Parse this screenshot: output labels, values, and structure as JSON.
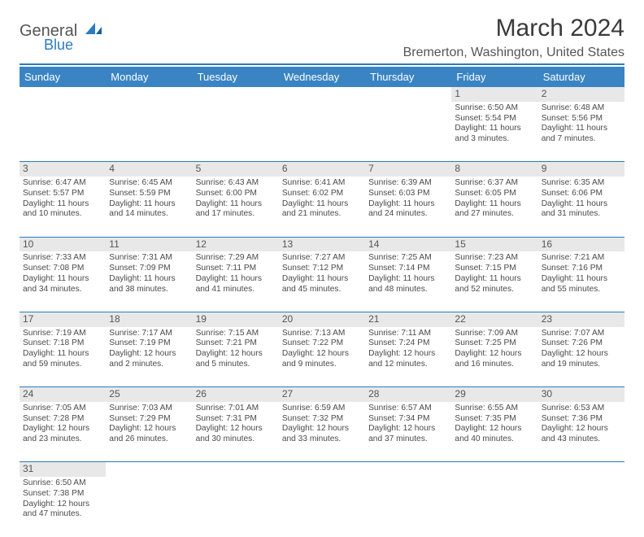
{
  "logo": {
    "text1": "General",
    "text2": "Blue"
  },
  "title": "March 2024",
  "location": "Bremerton, Washington, United States",
  "colors": {
    "header_bg": "#3a84c4",
    "rule": "#2b7bbf",
    "daynum_bg": "#e8e8e8",
    "text": "#4a4a4a"
  },
  "weekdays": [
    "Sunday",
    "Monday",
    "Tuesday",
    "Wednesday",
    "Thursday",
    "Friday",
    "Saturday"
  ],
  "weeks": [
    [
      null,
      null,
      null,
      null,
      null,
      {
        "n": "1",
        "sr": "6:50 AM",
        "ss": "5:54 PM",
        "dh": "11",
        "dm": "3"
      },
      {
        "n": "2",
        "sr": "6:48 AM",
        "ss": "5:56 PM",
        "dh": "11",
        "dm": "7"
      }
    ],
    [
      {
        "n": "3",
        "sr": "6:47 AM",
        "ss": "5:57 PM",
        "dh": "11",
        "dm": "10"
      },
      {
        "n": "4",
        "sr": "6:45 AM",
        "ss": "5:59 PM",
        "dh": "11",
        "dm": "14"
      },
      {
        "n": "5",
        "sr": "6:43 AM",
        "ss": "6:00 PM",
        "dh": "11",
        "dm": "17"
      },
      {
        "n": "6",
        "sr": "6:41 AM",
        "ss": "6:02 PM",
        "dh": "11",
        "dm": "21"
      },
      {
        "n": "7",
        "sr": "6:39 AM",
        "ss": "6:03 PM",
        "dh": "11",
        "dm": "24"
      },
      {
        "n": "8",
        "sr": "6:37 AM",
        "ss": "6:05 PM",
        "dh": "11",
        "dm": "27"
      },
      {
        "n": "9",
        "sr": "6:35 AM",
        "ss": "6:06 PM",
        "dh": "11",
        "dm": "31"
      }
    ],
    [
      {
        "n": "10",
        "sr": "7:33 AM",
        "ss": "7:08 PM",
        "dh": "11",
        "dm": "34"
      },
      {
        "n": "11",
        "sr": "7:31 AM",
        "ss": "7:09 PM",
        "dh": "11",
        "dm": "38"
      },
      {
        "n": "12",
        "sr": "7:29 AM",
        "ss": "7:11 PM",
        "dh": "11",
        "dm": "41"
      },
      {
        "n": "13",
        "sr": "7:27 AM",
        "ss": "7:12 PM",
        "dh": "11",
        "dm": "45"
      },
      {
        "n": "14",
        "sr": "7:25 AM",
        "ss": "7:14 PM",
        "dh": "11",
        "dm": "48"
      },
      {
        "n": "15",
        "sr": "7:23 AM",
        "ss": "7:15 PM",
        "dh": "11",
        "dm": "52"
      },
      {
        "n": "16",
        "sr": "7:21 AM",
        "ss": "7:16 PM",
        "dh": "11",
        "dm": "55"
      }
    ],
    [
      {
        "n": "17",
        "sr": "7:19 AM",
        "ss": "7:18 PM",
        "dh": "11",
        "dm": "59"
      },
      {
        "n": "18",
        "sr": "7:17 AM",
        "ss": "7:19 PM",
        "dh": "12",
        "dm": "2"
      },
      {
        "n": "19",
        "sr": "7:15 AM",
        "ss": "7:21 PM",
        "dh": "12",
        "dm": "5"
      },
      {
        "n": "20",
        "sr": "7:13 AM",
        "ss": "7:22 PM",
        "dh": "12",
        "dm": "9"
      },
      {
        "n": "21",
        "sr": "7:11 AM",
        "ss": "7:24 PM",
        "dh": "12",
        "dm": "12"
      },
      {
        "n": "22",
        "sr": "7:09 AM",
        "ss": "7:25 PM",
        "dh": "12",
        "dm": "16"
      },
      {
        "n": "23",
        "sr": "7:07 AM",
        "ss": "7:26 PM",
        "dh": "12",
        "dm": "19"
      }
    ],
    [
      {
        "n": "24",
        "sr": "7:05 AM",
        "ss": "7:28 PM",
        "dh": "12",
        "dm": "23"
      },
      {
        "n": "25",
        "sr": "7:03 AM",
        "ss": "7:29 PM",
        "dh": "12",
        "dm": "26"
      },
      {
        "n": "26",
        "sr": "7:01 AM",
        "ss": "7:31 PM",
        "dh": "12",
        "dm": "30"
      },
      {
        "n": "27",
        "sr": "6:59 AM",
        "ss": "7:32 PM",
        "dh": "12",
        "dm": "33"
      },
      {
        "n": "28",
        "sr": "6:57 AM",
        "ss": "7:34 PM",
        "dh": "12",
        "dm": "37"
      },
      {
        "n": "29",
        "sr": "6:55 AM",
        "ss": "7:35 PM",
        "dh": "12",
        "dm": "40"
      },
      {
        "n": "30",
        "sr": "6:53 AM",
        "ss": "7:36 PM",
        "dh": "12",
        "dm": "43"
      }
    ],
    [
      {
        "n": "31",
        "sr": "6:50 AM",
        "ss": "7:38 PM",
        "dh": "12",
        "dm": "47"
      },
      null,
      null,
      null,
      null,
      null,
      null
    ]
  ]
}
